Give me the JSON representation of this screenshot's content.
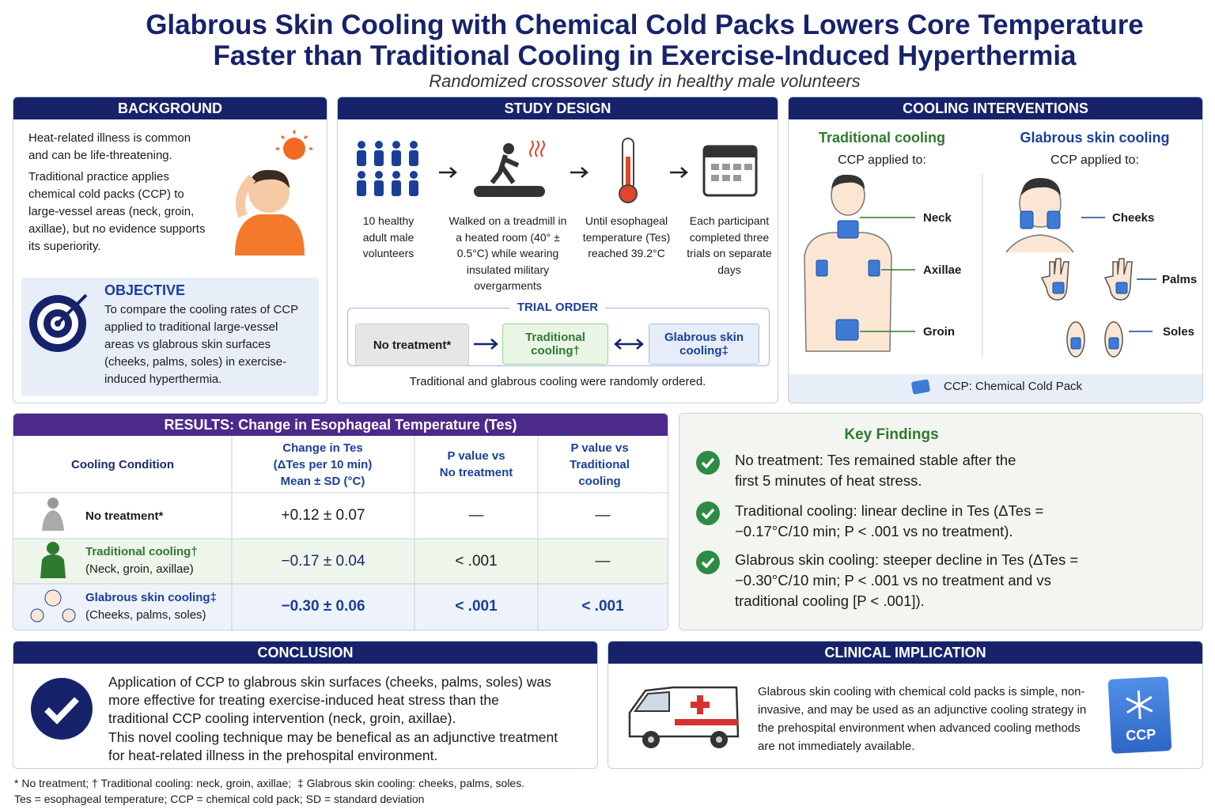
{
  "title": [
    "Glabrous Skin Cooling with Chemical Cold Packs Lowers Core Temperature",
    "Faster than Traditional Cooling in Exercise-Induced Hyperthermia"
  ],
  "subtitle": "Randomized crossover study in healthy male volunteers",
  "background": {
    "heading": "BACKGROUND",
    "paragraphs": [
      "Heat-related illness is common and can be life-threatening.",
      "Traditional practice applies chemical cold packs (CCP) to large-vessel areas (neck, groin, axillae), but no evidence supports its superiority."
    ]
  },
  "objective": {
    "heading": "OBJECTIVE",
    "text": "To compare the cooling rates of CCP applied to traditional large-vessel areas vs glabrous skin surfaces (cheeks, palms, soles) in exercise-induced hyperthermia."
  },
  "study_design": {
    "heading": "STUDY DESIGN",
    "steps": [
      "10 healthy adult male volunteers",
      "Walked on a treadmill in a heated room (40° ± 0.5°C) while wearing insulated military overgarments",
      "Until esophageal temperature (Tes) reached 39.2°C",
      "Each participant completed three trials on separate days"
    ],
    "trial_order": {
      "heading": "TRIAL ORDER",
      "items": [
        "No treatment*",
        "Traditional cooling†",
        "Glabrous skin cooling‡"
      ],
      "note": "Traditional and glabrous cooling were randomly ordered."
    }
  },
  "interventions": {
    "heading": "COOLING INTERVENTIONS",
    "groups": [
      {
        "title": "Traditional cooling",
        "subtitle": "CCP applied to:",
        "sites": [
          "Neck",
          "Axillae",
          "Groin"
        ]
      },
      {
        "title": "Glabrous skin cooling",
        "subtitle": "CCP applied to:",
        "sites": [
          "Cheeks",
          "Palms",
          "Soles"
        ]
      }
    ],
    "legend": "CCP: Chemical Cold Pack"
  },
  "results": {
    "heading": "RESULTS: Change in Esophageal Temperature (Tes)",
    "columns": [
      "Cooling Condition",
      "Change in Tes (ΔTes per 10 min) Mean ± SD (°C)",
      "P value vs No treatment",
      "P value vs Traditional cooling"
    ],
    "rows": [
      {
        "condition": "No treatment*",
        "detail": null,
        "change": "+0.12 ± 0.07",
        "p_none": "—",
        "p_trad": "—"
      },
      {
        "condition": "Traditional cooling†",
        "detail": "(Neck, groin, axillae)",
        "change": "−0.17 ± 0.04",
        "p_none": "< .001",
        "p_trad": "—"
      },
      {
        "condition": "Glabrous skin cooling‡",
        "detail": "(Cheeks, palms, soles)",
        "change": "−0.30 ± 0.06",
        "p_none": "< .001",
        "p_trad": "< .001"
      }
    ]
  },
  "key_findings": {
    "heading": "Key Findings",
    "items": [
      "No treatment: Tes remained stable after the first 5 minutes of heat stress.",
      "Traditional cooling: linear decline in Tes (ΔTes = −0.17°C/10 min; P < .001 vs no treatment).",
      "Glabrous skin cooling: steeper decline in Tes (ΔTes = −0.30°C/10 min; P < .001 vs no treatment and vs traditional cooling [P < .001])."
    ]
  },
  "conclusion": {
    "heading": "CONCLUSION",
    "paragraphs": [
      "Application of CCP to glabrous skin surfaces (cheeks, palms, soles) was more effective for treating exercise-induced heat stress than the traditional CCP cooling intervention (neck, groin, axillae).",
      "This novel cooling technique may be benefical as an adjunctive treatment for heat-related illness in the prehospital environment."
    ]
  },
  "clinical_implication": {
    "heading": "CLINICAL IMPLICATION",
    "text": "Glabrous skin cooling with chemical cold packs is simple, non-invasive, and may be used as an adjunctive cooling strategy in the prehospital environment when advanced cooling methods are not immediately available.",
    "pack_label": "CCP"
  },
  "footnotes": [
    "* No treatment; † Traditional cooling: neck, groin, axillae;  ‡ Glabrous skin cooling: cheeks, palms, soles.",
    "Tes = esophageal temperature; CCP = chemical cold pack; SD = standard deviation"
  ]
}
